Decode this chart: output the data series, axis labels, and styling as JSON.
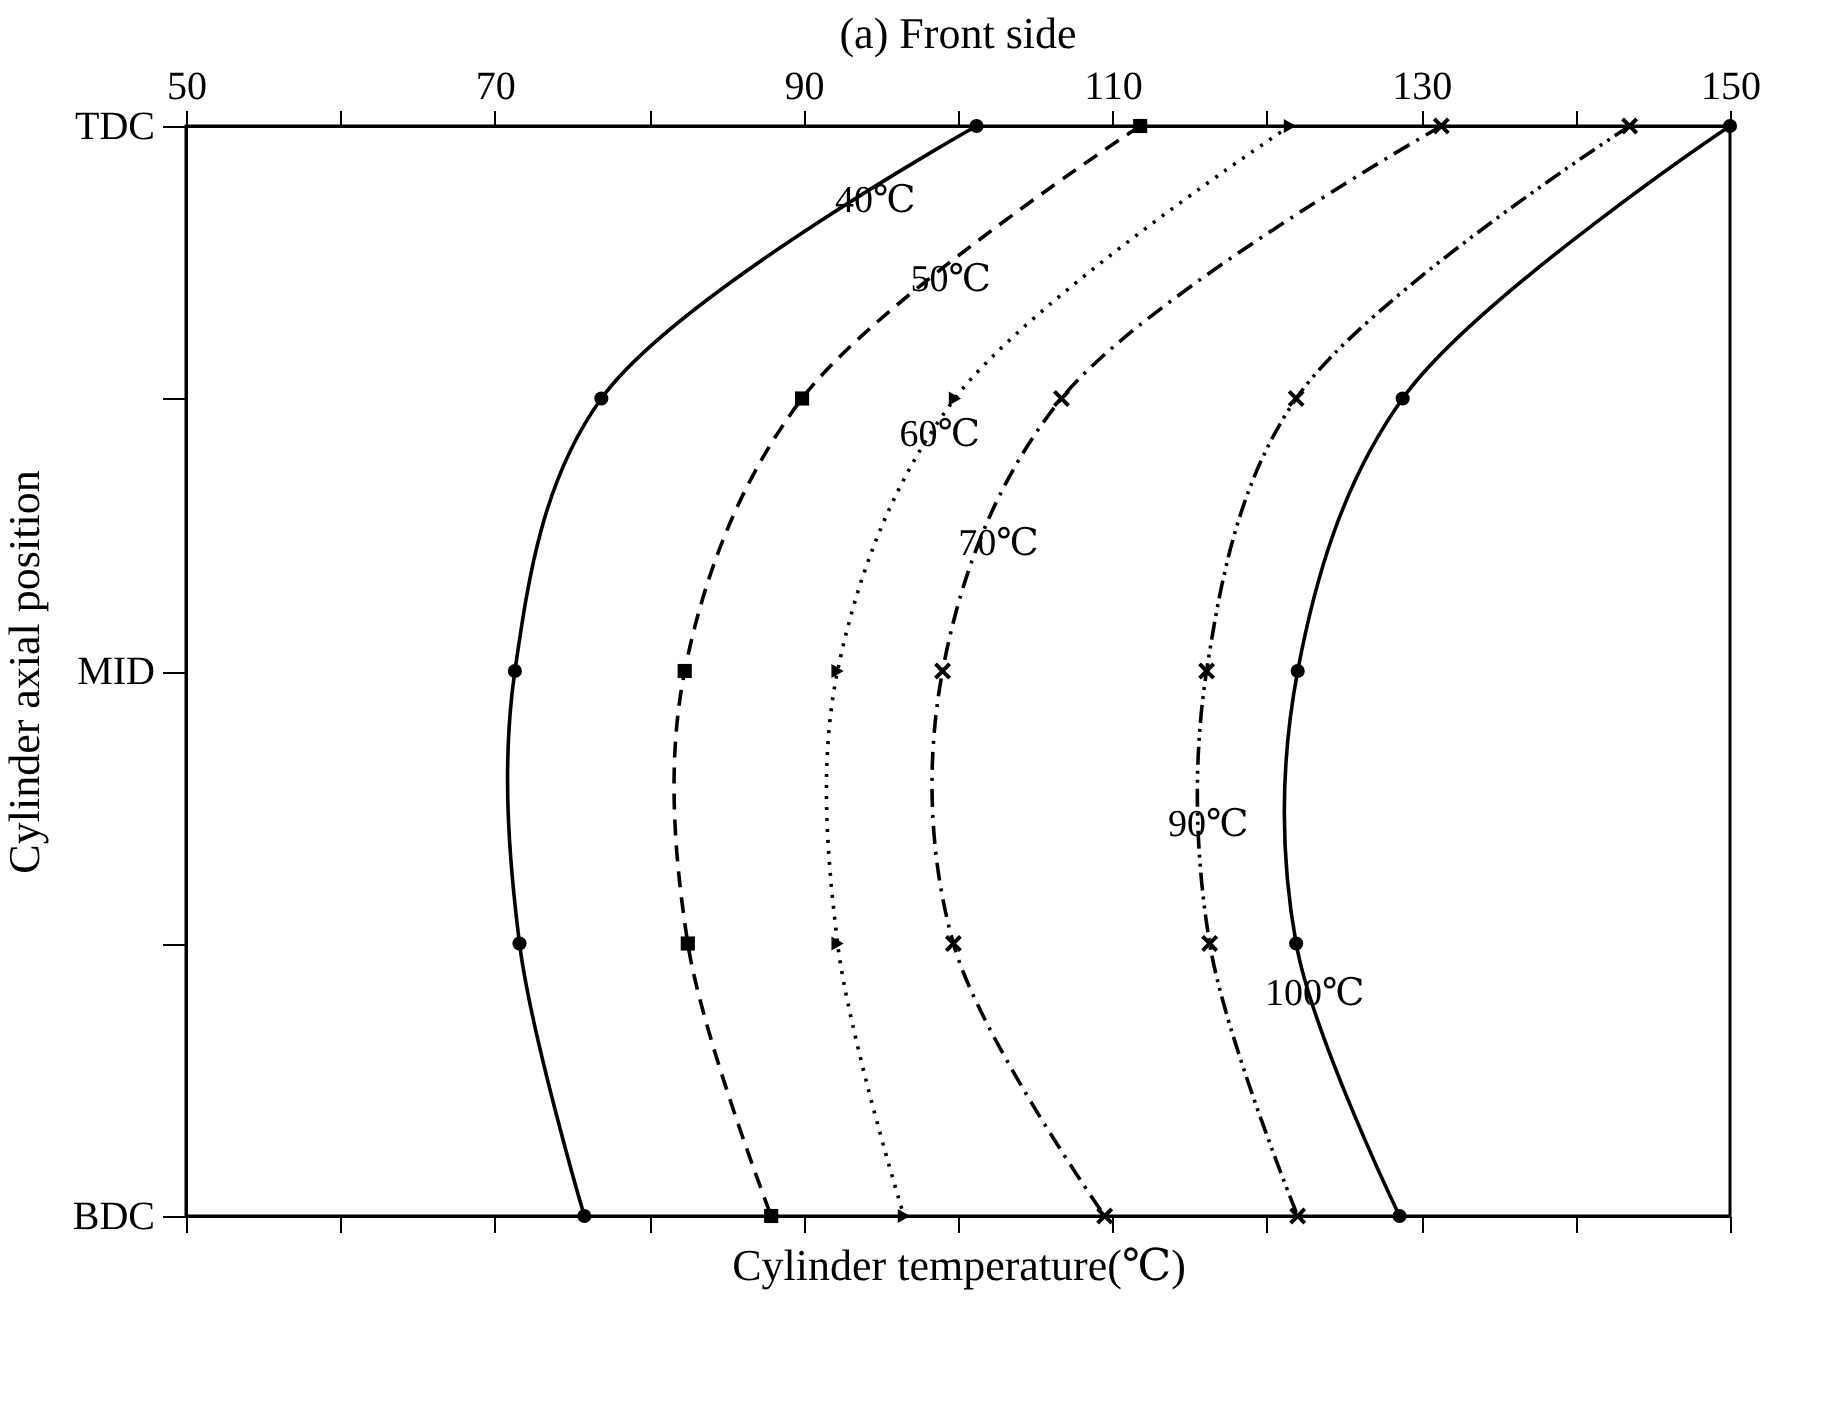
{
  "chart_data": {
    "type": "line",
    "title": "(a) Front side",
    "xlabel": "Cylinder temperature(℃)",
    "ylabel": "Cylinder axial position",
    "categories": [
      "TDC",
      null,
      "MID",
      null,
      "BDC"
    ],
    "orientation": "horizontal",
    "xlim": [
      50,
      150
    ],
    "xticks": [
      50,
      {
        "value": 60,
        "label": null
      },
      70,
      {
        "value": 80,
        "label": null
      },
      90,
      {
        "value": 100,
        "label": null
      },
      110,
      {
        "value": 120,
        "label": null
      },
      130,
      {
        "value": 140,
        "label": null
      },
      150
    ],
    "grid": false,
    "series": [
      {
        "name": "40℃",
        "color": "#000000",
        "marker": "circle",
        "line_style": "solid",
        "values": [
          101.2,
          76.9,
          71.3,
          71.6,
          75.8
        ]
      },
      {
        "name": "50℃",
        "color": "#000000",
        "marker": "square",
        "line_style": "dashed",
        "values": [
          111.8,
          89.9,
          82.3,
          82.5,
          87.9
        ]
      },
      {
        "name": "60℃",
        "color": "#000000",
        "marker": "triangle",
        "line_style": "dotted",
        "values": [
          121.5,
          99.8,
          92.2,
          92.2,
          96.5
        ]
      },
      {
        "name": "70℃",
        "color": "#000000",
        "marker": "cross",
        "line_style": "dashdot",
        "values": [
          131.3,
          106.7,
          99.0,
          99.7,
          109.5
        ]
      },
      {
        "name": "90℃",
        "color": "#000000",
        "marker": "cross",
        "line_style": "dashdotdot",
        "values": [
          143.5,
          121.9,
          116.1,
          116.3,
          122.0
        ]
      },
      {
        "name": "100℃",
        "color": "#000000",
        "marker": "circle",
        "line_style": "solid",
        "values": [
          150,
          128.8,
          122.0,
          121.9,
          128.6
        ]
      }
    ]
  }
}
